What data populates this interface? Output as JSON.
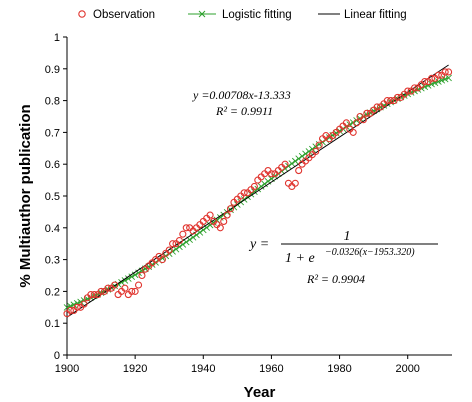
{
  "chart_data": {
    "type": "scatter",
    "xlabel": "Year",
    "ylabel": "% Multiauthor publication",
    "xlim": [
      1900,
      2013
    ],
    "ylim": [
      0,
      1
    ],
    "xticks": [
      1900,
      1920,
      1940,
      1960,
      1980,
      2000
    ],
    "yticks": [
      0,
      0.1,
      0.2,
      0.3,
      0.4,
      0.5,
      0.6,
      0.7,
      0.8,
      0.9,
      1
    ],
    "grid": false,
    "legend_position": "top",
    "legend": [
      "Observation",
      "Logistic fitting",
      "Linear fitting"
    ],
    "colors": {
      "observation": "#e0342e",
      "logistic": "#2ca02c",
      "linear": "#000000"
    },
    "series": [
      {
        "name": "Observation",
        "marker": "open-circle",
        "x": [
          1900,
          1901,
          1902,
          1903,
          1904,
          1905,
          1906,
          1907,
          1908,
          1909,
          1910,
          1911,
          1912,
          1913,
          1914,
          1915,
          1916,
          1917,
          1918,
          1919,
          1920,
          1921,
          1922,
          1923,
          1924,
          1925,
          1926,
          1927,
          1928,
          1929,
          1930,
          1931,
          1932,
          1933,
          1934,
          1935,
          1936,
          1937,
          1938,
          1939,
          1940,
          1941,
          1942,
          1943,
          1944,
          1945,
          1946,
          1947,
          1948,
          1949,
          1950,
          1951,
          1952,
          1953,
          1954,
          1955,
          1956,
          1957,
          1958,
          1959,
          1960,
          1961,
          1962,
          1963,
          1964,
          1965,
          1966,
          1967,
          1968,
          1969,
          1970,
          1971,
          1972,
          1973,
          1974,
          1975,
          1976,
          1977,
          1978,
          1979,
          1980,
          1981,
          1982,
          1983,
          1984,
          1985,
          1986,
          1987,
          1988,
          1989,
          1990,
          1991,
          1992,
          1993,
          1994,
          1995,
          1996,
          1997,
          1998,
          1999,
          2000,
          2001,
          2002,
          2003,
          2004,
          2005,
          2006,
          2007,
          2008,
          2009,
          2010,
          2011,
          2012
        ],
        "y": [
          0.13,
          0.14,
          0.14,
          0.15,
          0.15,
          0.16,
          0.18,
          0.19,
          0.19,
          0.19,
          0.2,
          0.2,
          0.21,
          0.21,
          0.22,
          0.19,
          0.2,
          0.21,
          0.19,
          0.2,
          0.2,
          0.22,
          0.25,
          0.27,
          0.28,
          0.29,
          0.3,
          0.31,
          0.3,
          0.32,
          0.33,
          0.35,
          0.35,
          0.36,
          0.38,
          0.4,
          0.4,
          0.39,
          0.4,
          0.41,
          0.42,
          0.43,
          0.44,
          0.42,
          0.41,
          0.4,
          0.42,
          0.44,
          0.46,
          0.48,
          0.49,
          0.5,
          0.51,
          0.51,
          0.52,
          0.53,
          0.55,
          0.56,
          0.57,
          0.58,
          0.57,
          0.57,
          0.58,
          0.59,
          0.6,
          0.54,
          0.53,
          0.54,
          0.58,
          0.6,
          0.61,
          0.62,
          0.63,
          0.64,
          0.66,
          0.68,
          0.69,
          0.68,
          0.69,
          0.7,
          0.71,
          0.72,
          0.73,
          0.71,
          0.7,
          0.73,
          0.75,
          0.74,
          0.76,
          0.76,
          0.77,
          0.78,
          0.78,
          0.79,
          0.8,
          0.8,
          0.8,
          0.81,
          0.81,
          0.82,
          0.83,
          0.83,
          0.84,
          0.84,
          0.85,
          0.86,
          0.86,
          0.87,
          0.87,
          0.88,
          0.88,
          0.89,
          0.89
        ]
      },
      {
        "name": "Logistic fitting",
        "marker": "x",
        "model": {
          "k": 0.0326,
          "x0": 1953.32
        }
      },
      {
        "name": "Linear fitting",
        "model": {
          "slope": 0.00708,
          "intercept": -13.333
        }
      }
    ],
    "annotations": {
      "linear_eq": "y =0.00708x-13.333",
      "linear_r2": "R² = 0.9911",
      "logistic_lhs": "y =",
      "logistic_num": "1",
      "logistic_den_base": "1 + e",
      "logistic_exp": "−0.0326(x−1953.320)",
      "logistic_r2": "R² = 0.9904"
    }
  }
}
